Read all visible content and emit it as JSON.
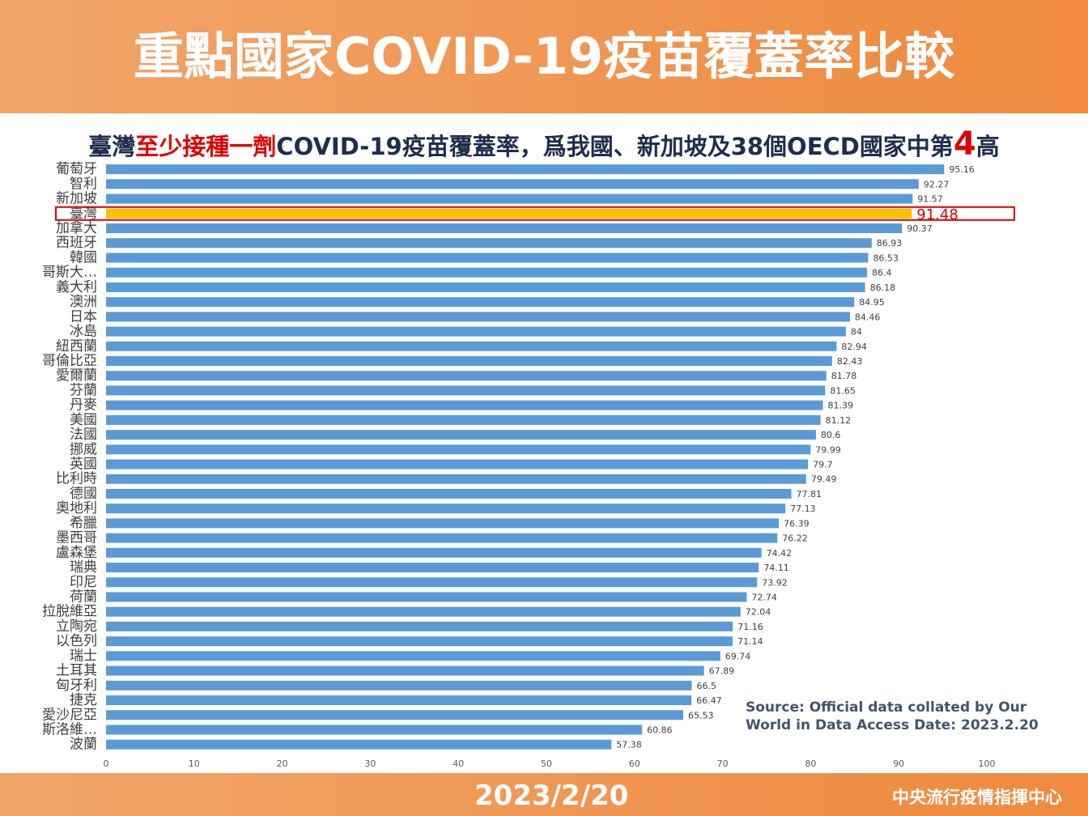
{
  "chart_data": {
    "type": "bar",
    "orientation": "horizontal",
    "title": "重點國家COVID-19疫苗覆蓋率比較",
    "subtitle": [
      "臺灣",
      "至少接種一劑",
      "COVID-19疫苗覆蓋率，爲我國、新加坡及38個OECD國家中第",
      "4",
      "高"
    ],
    "categories": [
      "葡萄牙",
      "智利",
      "新加坡",
      "臺灣",
      "加拿大",
      "西班牙",
      "韓國",
      "哥斯大…",
      "義大利",
      "澳洲",
      "日本",
      "冰島",
      "紐西蘭",
      "哥倫比亞",
      "愛爾蘭",
      "芬蘭",
      "丹麥",
      "美國",
      "法國",
      "挪威",
      "英國",
      "比利時",
      "德國",
      "奧地利",
      "希臘",
      "墨西哥",
      "盧森堡",
      "瑞典",
      "印尼",
      "荷蘭",
      "拉脫維亞",
      "立陶宛",
      "以色列",
      "瑞士",
      "土耳其",
      "匈牙利",
      "捷克",
      "愛沙尼亞",
      "斯洛維…",
      "波蘭"
    ],
    "values": [
      95.16,
      92.27,
      91.57,
      91.48,
      90.37,
      86.93,
      86.53,
      86.4,
      86.18,
      84.95,
      84.46,
      84,
      82.94,
      82.43,
      81.78,
      81.65,
      81.39,
      81.12,
      80.6,
      79.99,
      79.7,
      79.49,
      77.81,
      77.13,
      76.39,
      76.22,
      74.42,
      74.11,
      73.92,
      72.74,
      72.04,
      71.16,
      71.14,
      69.74,
      67.89,
      66.5,
      66.47,
      65.53,
      60.86,
      57.38
    ],
    "color": "#5b9bd5",
    "highlight": {
      "index": 3,
      "color": "#ffc000",
      "outline": "#e00000"
    },
    "xlim": [
      0,
      100
    ],
    "xticks": [
      0,
      10,
      20,
      30,
      40,
      50,
      60,
      70,
      80,
      90,
      100
    ],
    "grid": false,
    "source": "Source:  Official data collated by Our World in Data   Access Date: 2023.2.20",
    "date": "2023/2/20",
    "organization": "中央流行疫情指揮中心"
  }
}
